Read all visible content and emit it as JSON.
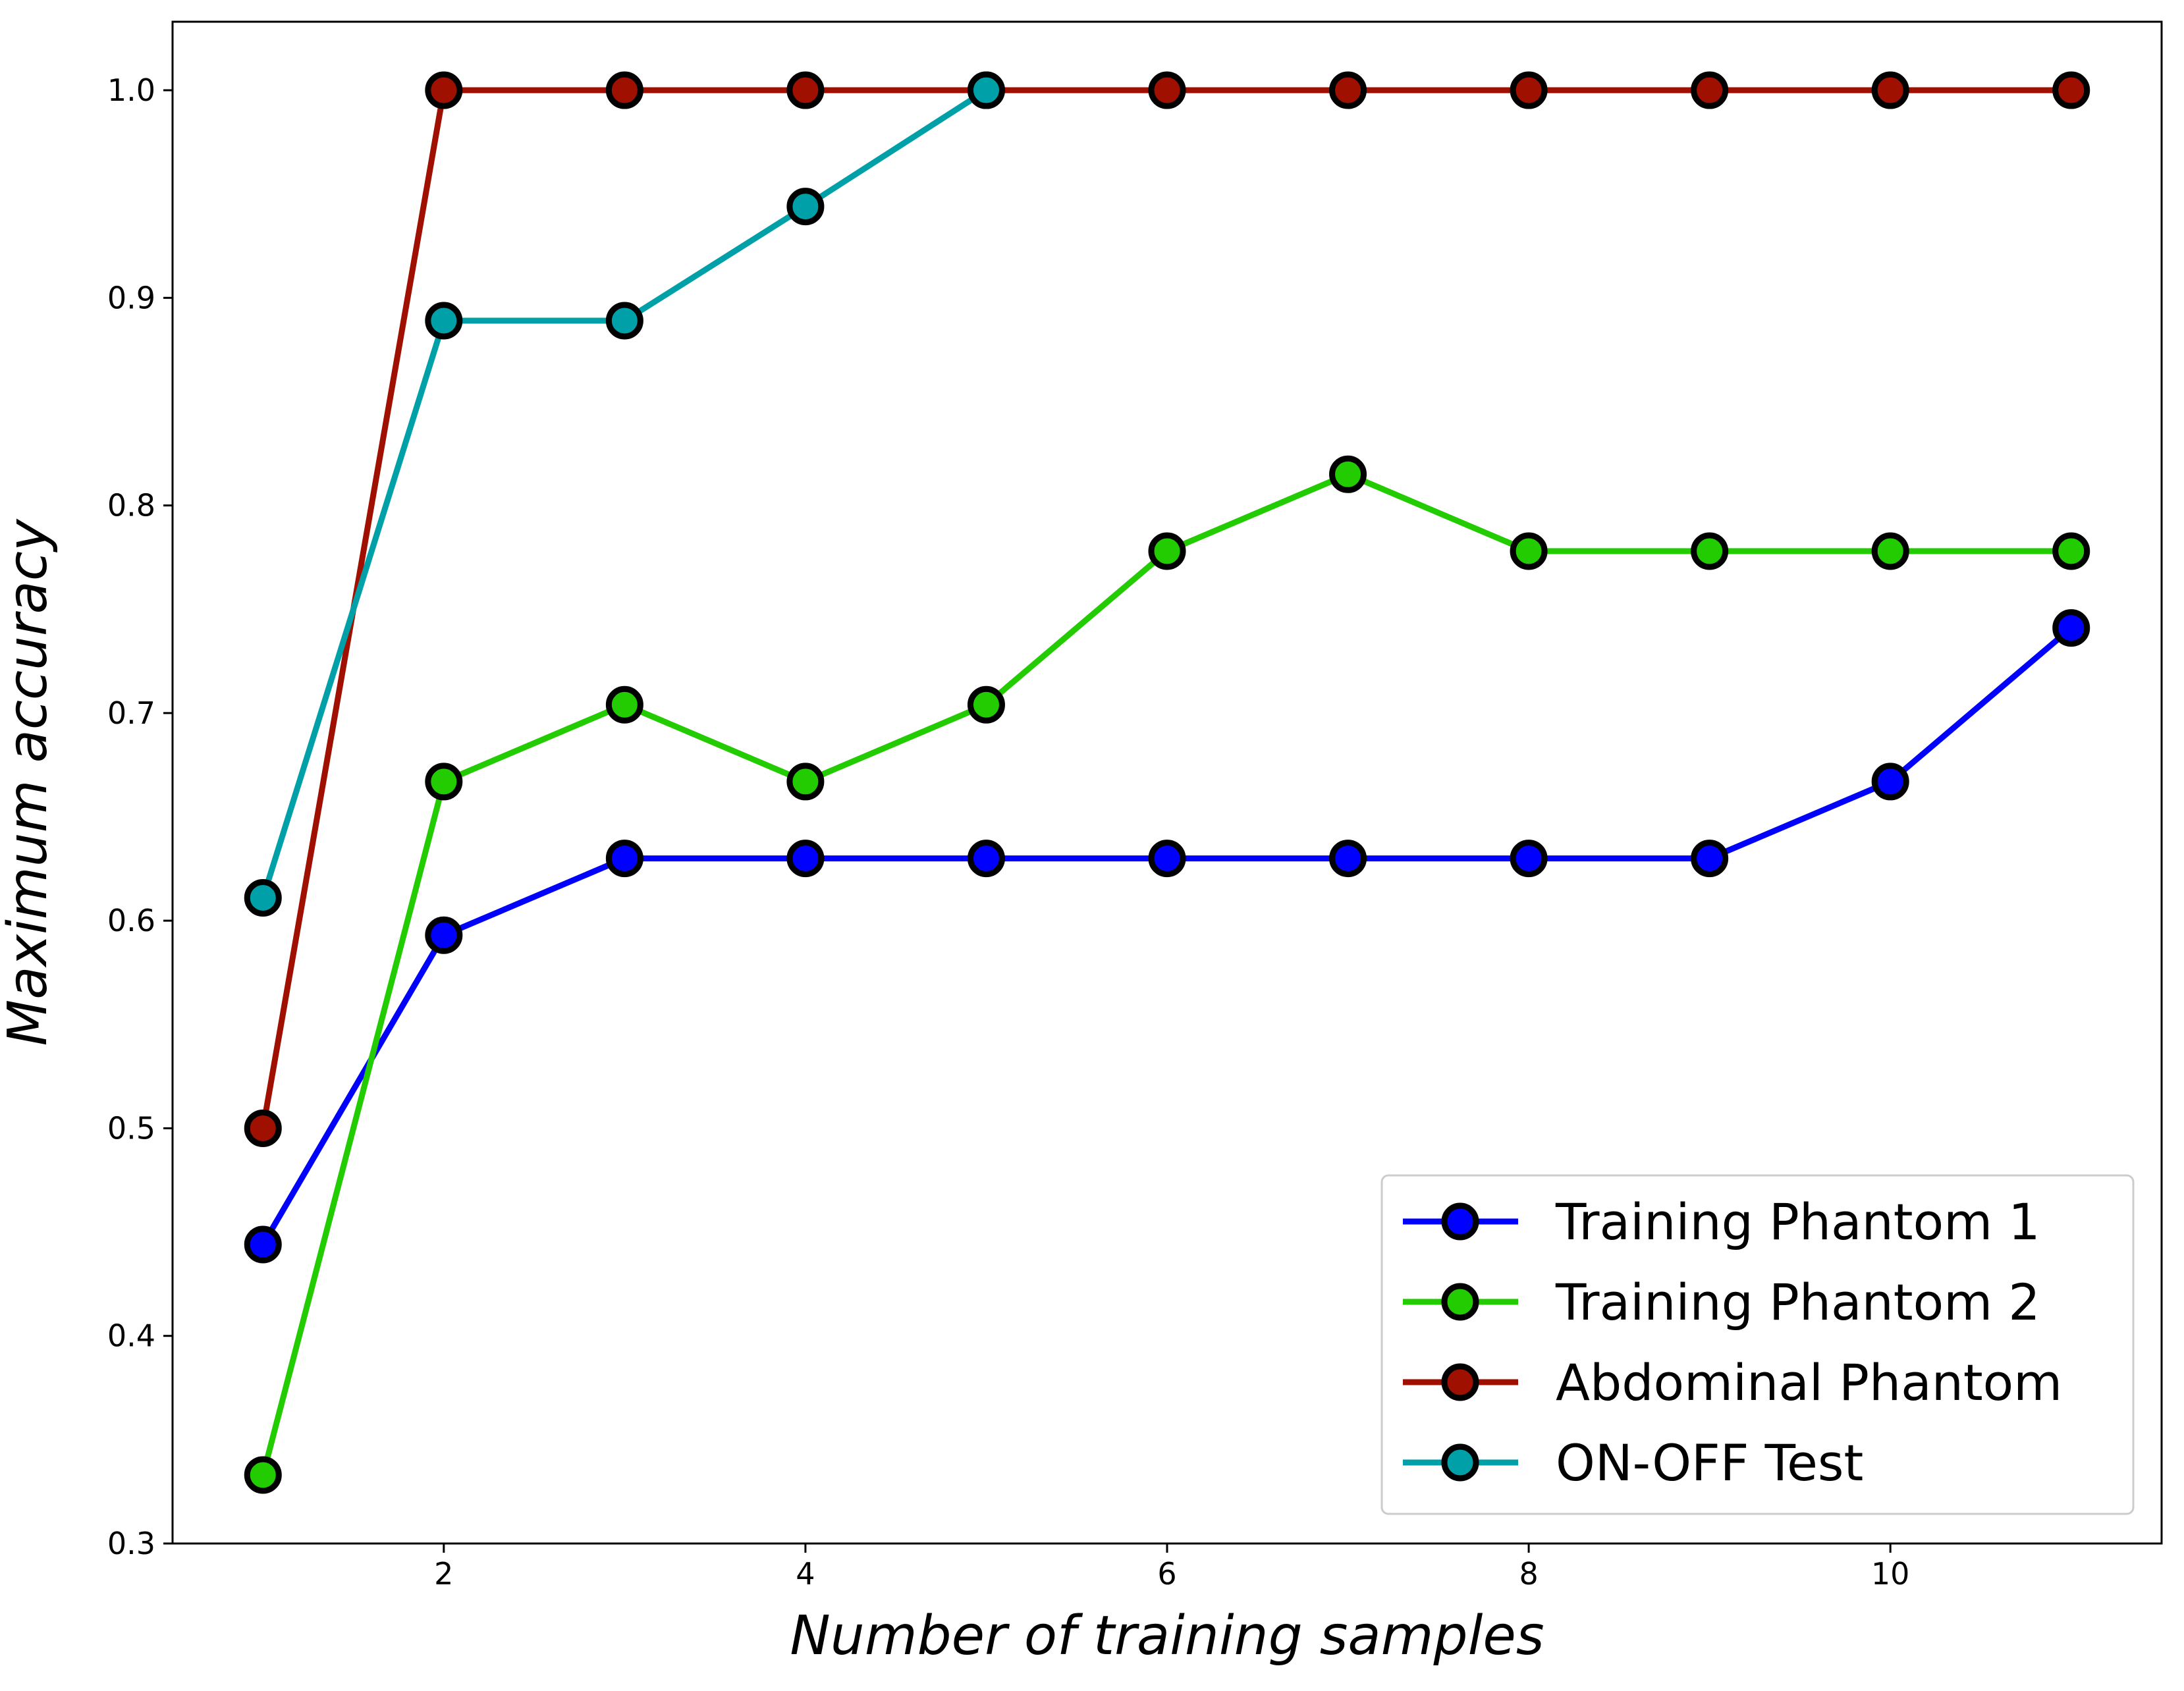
{
  "chart_data": {
    "type": "line",
    "title": "",
    "xlabel": "Number of training samples",
    "ylabel": "Maximum accuracy",
    "xlim": [
      0.5,
      11.5
    ],
    "ylim": [
      0.3,
      1.033
    ],
    "xticks": [
      2,
      4,
      6,
      8,
      10
    ],
    "yticks": [
      0.3,
      0.4,
      0.5,
      0.6,
      0.7,
      0.8,
      0.9,
      1.0
    ],
    "ytick_labels": [
      "0.3",
      "0.4",
      "0.5",
      "0.6",
      "0.7",
      "0.8",
      "0.9",
      "1.0"
    ],
    "grid": false,
    "legend_position": "lower-right",
    "x": [
      1,
      2,
      3,
      4,
      5,
      6,
      7,
      8,
      9,
      10,
      11
    ],
    "series": [
      {
        "name": "Training Phantom 1",
        "color": "#0000ff",
        "x": [
          1,
          2,
          3,
          4,
          5,
          6,
          7,
          8,
          9,
          10,
          11
        ],
        "values": [
          0.444,
          0.593,
          0.63,
          0.63,
          0.63,
          0.63,
          0.63,
          0.63,
          0.63,
          0.667,
          0.741
        ]
      },
      {
        "name": "Training Phantom 2",
        "color": "#22cc00",
        "x": [
          1,
          2,
          3,
          4,
          5,
          6,
          7,
          8,
          9,
          10,
          11
        ],
        "values": [
          0.333,
          0.667,
          0.704,
          0.667,
          0.704,
          0.778,
          0.815,
          0.778,
          0.778,
          0.778,
          0.778
        ]
      },
      {
        "name": "Abdominal Phantom",
        "color": "#a01000",
        "x": [
          1,
          2,
          3,
          4,
          5,
          6,
          7,
          8,
          9,
          10,
          11
        ],
        "values": [
          0.5,
          1.0,
          1.0,
          1.0,
          1.0,
          1.0,
          1.0,
          1.0,
          1.0,
          1.0,
          1.0
        ]
      },
      {
        "name": "ON-OFF Test",
        "color": "#00a0a8",
        "x": [
          1,
          2,
          3,
          4,
          5
        ],
        "values": [
          0.611,
          0.889,
          0.889,
          0.944,
          1.0
        ]
      }
    ]
  }
}
